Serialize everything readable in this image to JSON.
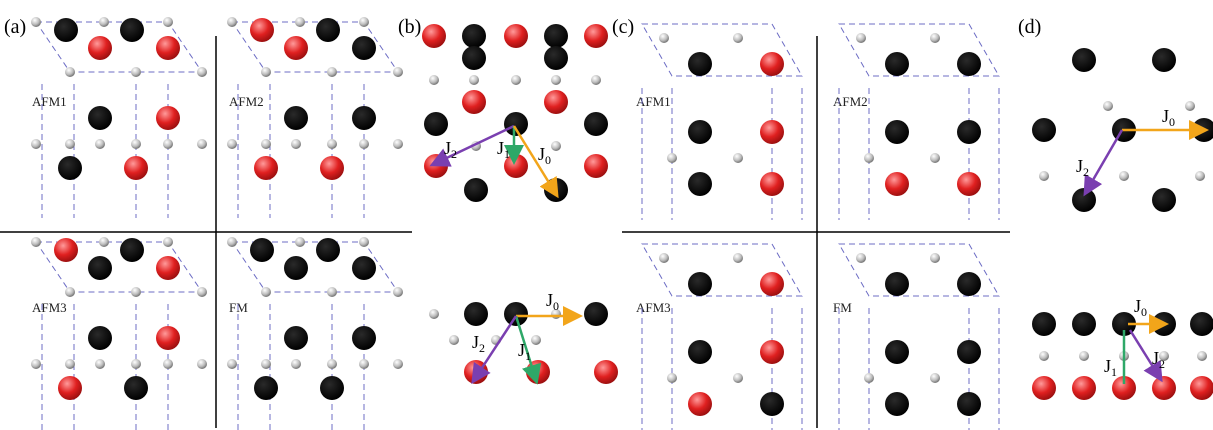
{
  "panels": {
    "a": "(a)",
    "b": "(b)",
    "c": "(c)",
    "d": "(d)"
  },
  "config_labels": [
    "AFM1",
    "AFM2",
    "AFM3",
    "FM"
  ],
  "exchange": {
    "j0": "J",
    "j0_sub": "0",
    "j1": "J",
    "j1_sub": "1",
    "j2": "J",
    "j2_sub": "2"
  },
  "colors": {
    "spin_up": "#000000",
    "spin_down": "#e02020",
    "anion": "#b8b8b8",
    "cell_edge": "#6c6cc4",
    "j0_arrow": "#f2a51a",
    "j1_arrow": "#2ea868",
    "j2_arrow": "#7a3fb0"
  },
  "configs_a": {
    "AFM1": {
      "top": [
        "k",
        "r",
        "k",
        "r"
      ],
      "mid": [
        "k",
        "r"
      ],
      "low": [
        "k",
        "r"
      ]
    },
    "AFM2": {
      "top": [
        "r",
        "r",
        "k",
        "k"
      ],
      "mid": [
        "k",
        "k"
      ],
      "low": [
        "r",
        "r"
      ]
    },
    "AFM3": {
      "top": [
        "r",
        "k",
        "k",
        "r"
      ],
      "mid": [
        "k",
        "r"
      ],
      "low": [
        "r",
        "k"
      ]
    },
    "FM": {
      "top": [
        "k",
        "k",
        "k",
        "k"
      ],
      "mid": [
        "k",
        "k"
      ],
      "low": [
        "k",
        "k"
      ]
    }
  },
  "configs_c": {
    "AFM1": {
      "top": [
        "k",
        "r"
      ],
      "mid": [
        "k",
        "r"
      ],
      "low": [
        "k",
        "r"
      ]
    },
    "AFM2": {
      "top": [
        "k",
        "k"
      ],
      "mid": [
        "k",
        "k"
      ],
      "low": [
        "r",
        "r"
      ]
    },
    "AFM3": {
      "top": [
        "k",
        "r"
      ],
      "mid": [
        "k",
        "r"
      ],
      "low": [
        "r",
        "k"
      ]
    },
    "FM": {
      "top": [
        "k",
        "k"
      ],
      "mid": [
        "k",
        "k"
      ],
      "low": [
        "k",
        "k"
      ]
    }
  }
}
